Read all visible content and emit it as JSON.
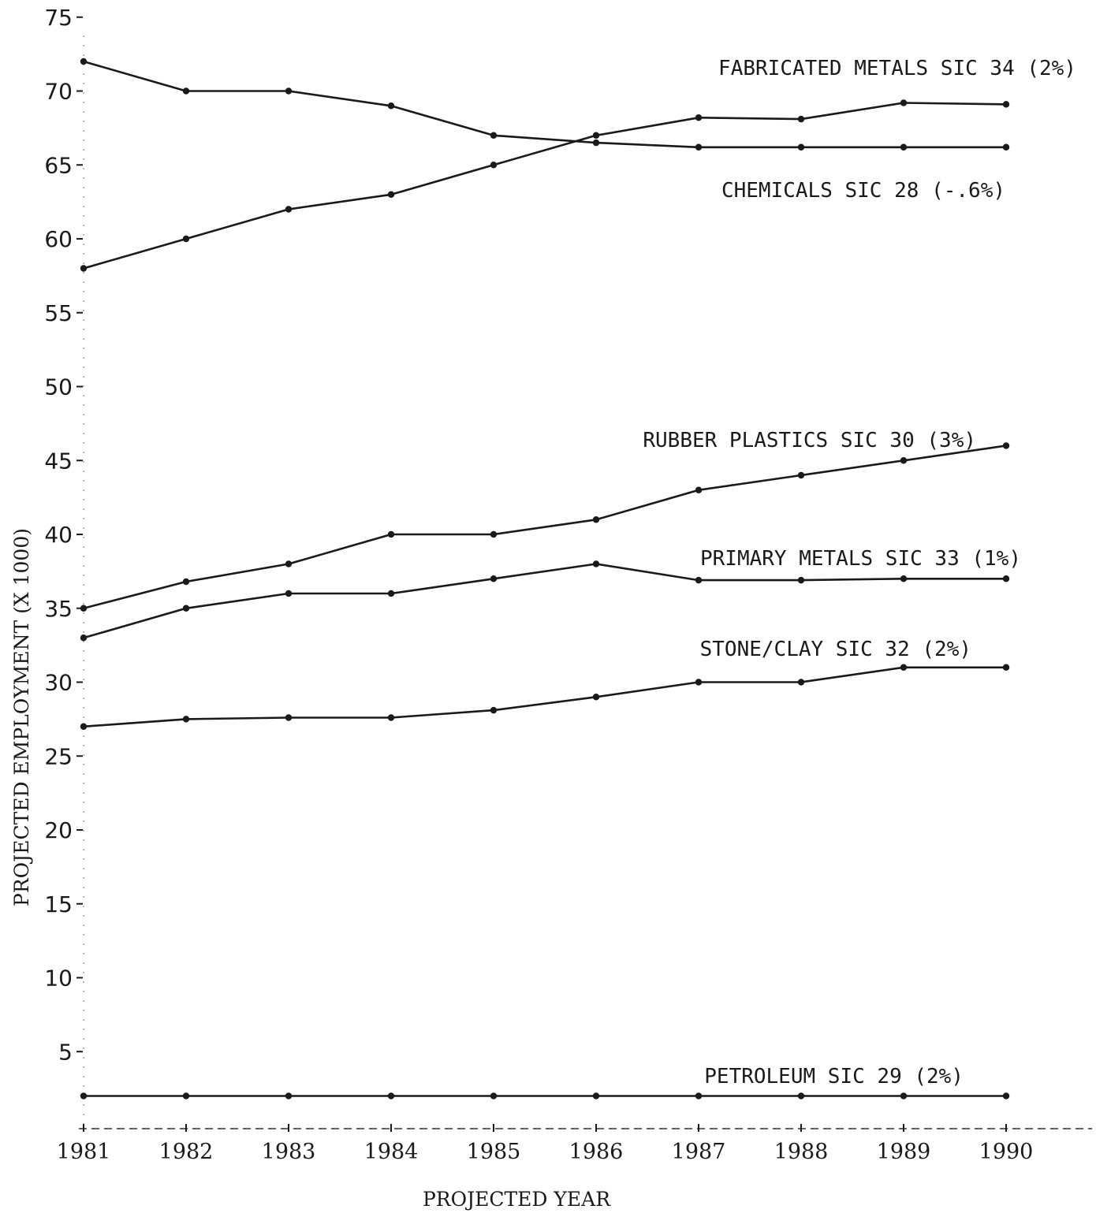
{
  "chart_data": {
    "type": "line",
    "title": "",
    "xlabel": "PROJECTED YEAR",
    "ylabel": "PROJECTED EMPLOYMENT (X 1000)",
    "x": [
      1981,
      1982,
      1983,
      1984,
      1985,
      1986,
      1987,
      1988,
      1989,
      1990
    ],
    "x_tick_labels": [
      "1981",
      "1982",
      "1983",
      "1984",
      "1985",
      "1986",
      "1987",
      "1988",
      "1989",
      "1990"
    ],
    "ylim": [
      0,
      75
    ],
    "y_ticks": [
      5,
      10,
      15,
      20,
      25,
      30,
      35,
      40,
      45,
      50,
      55,
      60,
      65,
      70,
      75
    ],
    "y_tick_labels": [
      "5",
      "10",
      "15",
      "20",
      "25",
      "30",
      "35",
      "40",
      "45",
      "50",
      "55",
      "60",
      "65",
      "70",
      "75"
    ],
    "grid": false,
    "legend": "inline labels",
    "series": [
      {
        "name": "FABRICATED METALS SIC 34 (2%)",
        "values": [
          58,
          60,
          62,
          63,
          65,
          67,
          68.2,
          68.1,
          69.2,
          69.1
        ]
      },
      {
        "name": "CHEMICALS SIC 28 (-.6%)",
        "values": [
          72,
          70,
          70,
          69,
          67,
          66.5,
          66.2,
          66.2,
          66.2,
          66.2
        ]
      },
      {
        "name": "RUBBER PLASTICS SIC 30 (3%)",
        "values": [
          35,
          36.8,
          38,
          40,
          40,
          41,
          43,
          44,
          45,
          46
        ]
      },
      {
        "name": "PRIMARY METALS SIC 33 (1%)",
        "values": [
          33,
          35,
          36,
          36,
          37,
          38,
          36.9,
          36.9,
          37,
          37
        ]
      },
      {
        "name": "STONE/CLAY SIC 32 (2%)",
        "values": [
          27,
          27.5,
          27.6,
          27.6,
          28.1,
          29,
          30,
          30,
          31,
          31
        ]
      },
      {
        "name": "PETROLEUM SIC 29 (2%)",
        "values": [
          2,
          2,
          2,
          2,
          2,
          2,
          2,
          2,
          2,
          2
        ]
      }
    ]
  }
}
